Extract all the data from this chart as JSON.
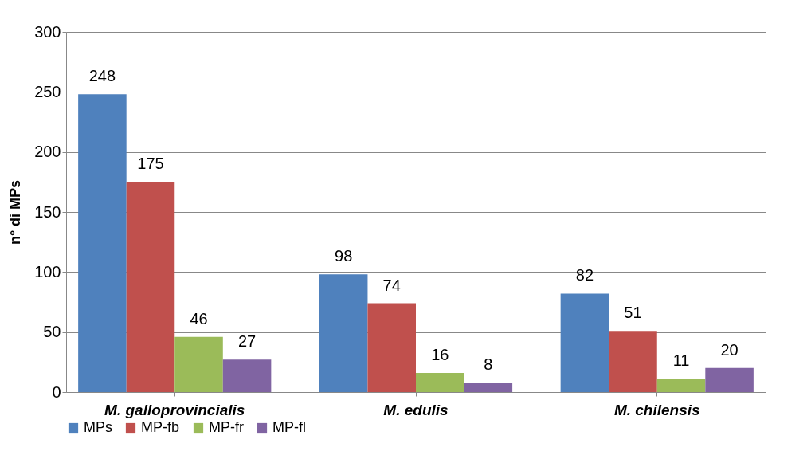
{
  "chart_data": {
    "type": "bar",
    "ylabel": "n° di MPs",
    "categories": [
      "M. galloprovincialis",
      "M. edulis",
      "M. chilensis"
    ],
    "series": [
      {
        "name": "MPs",
        "color": "#4f81bd",
        "values": [
          248,
          98,
          82
        ]
      },
      {
        "name": "MP-fb",
        "color": "#c0504d",
        "values": [
          175,
          74,
          51
        ]
      },
      {
        "name": "MP-fr",
        "color": "#9bbb59",
        "values": [
          46,
          16,
          11
        ]
      },
      {
        "name": "MP-fl",
        "color": "#8064a2",
        "values": [
          27,
          8,
          20
        ]
      }
    ],
    "ylim": [
      0,
      300
    ],
    "yticks": [
      0,
      50,
      100,
      150,
      200,
      250,
      300
    ],
    "grid": "y",
    "legend": "bottom",
    "data_labels": true
  }
}
